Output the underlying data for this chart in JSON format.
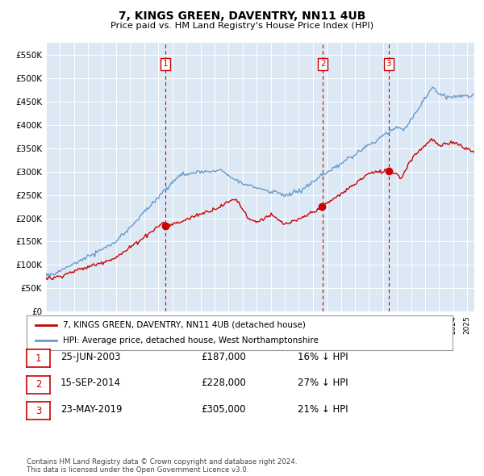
{
  "title": "7, KINGS GREEN, DAVENTRY, NN11 4UB",
  "subtitle": "Price paid vs. HM Land Registry's House Price Index (HPI)",
  "background_color": "#ffffff",
  "plot_bg_color": "#dce9f5",
  "grid_color": "#ffffff",
  "purchase_color": "#cc0000",
  "hpi_color": "#6699cc",
  "vline_color": "#cc0000",
  "ylim": [
    0,
    575000
  ],
  "yticks": [
    0,
    50000,
    100000,
    150000,
    200000,
    250000,
    300000,
    350000,
    400000,
    450000,
    500000,
    550000
  ],
  "ytick_labels": [
    "£0",
    "£50K",
    "£100K",
    "£150K",
    "£200K",
    "£250K",
    "£300K",
    "£350K",
    "£400K",
    "£450K",
    "£500K",
    "£550K"
  ],
  "xmin": 1995.0,
  "xmax": 2025.5,
  "purchases": [
    {
      "date_num": 2003.48,
      "price": 187000,
      "label": "1"
    },
    {
      "date_num": 2014.71,
      "price": 228000,
      "label": "2"
    },
    {
      "date_num": 2019.39,
      "price": 305000,
      "label": "3"
    }
  ],
  "table_data": [
    [
      "1",
      "25-JUN-2003",
      "£187,000",
      "16% ↓ HPI"
    ],
    [
      "2",
      "15-SEP-2014",
      "£228,000",
      "27% ↓ HPI"
    ],
    [
      "3",
      "23-MAY-2019",
      "£305,000",
      "21% ↓ HPI"
    ]
  ],
  "legend_entries": [
    "7, KINGS GREEN, DAVENTRY, NN11 4UB (detached house)",
    "HPI: Average price, detached house, West Northamptonshire"
  ],
  "footer": "Contains HM Land Registry data © Crown copyright and database right 2024.\nThis data is licensed under the Open Government Licence v3.0."
}
